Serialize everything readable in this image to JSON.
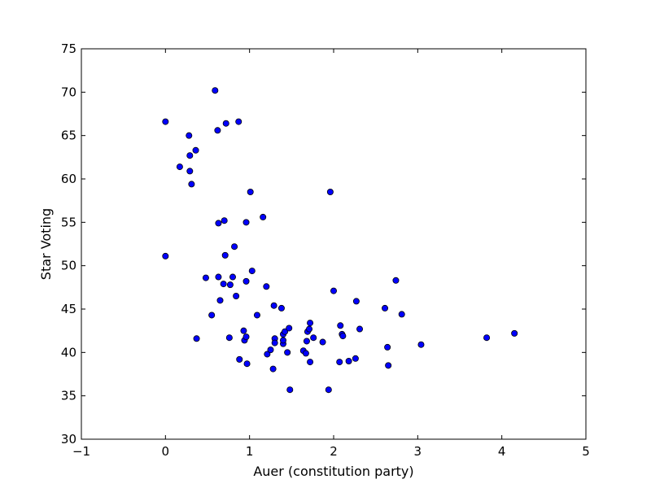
{
  "chart_data": {
    "type": "scatter",
    "title": "",
    "xlabel": "Auer (constitution party)",
    "ylabel": "Star Voting",
    "xlim": [
      -1,
      5
    ],
    "ylim": [
      30,
      75
    ],
    "xticks": [
      -1,
      0,
      1,
      2,
      3,
      4,
      5
    ],
    "xtick_labels": [
      "−1",
      "0",
      "1",
      "2",
      "3",
      "4",
      "5"
    ],
    "yticks": [
      30,
      35,
      40,
      45,
      50,
      55,
      60,
      65,
      70,
      75
    ],
    "ytick_labels": [
      "30",
      "35",
      "40",
      "45",
      "50",
      "55",
      "60",
      "65",
      "70",
      "75"
    ],
    "grid": false,
    "marker_color": "#0000ff",
    "marker_edge_color": "#000000",
    "series": [
      {
        "points": [
          [
            0.0,
            66.6
          ],
          [
            0.0,
            51.1
          ],
          [
            0.17,
            61.4
          ],
          [
            0.28,
            65.0
          ],
          [
            0.29,
            62.7
          ],
          [
            0.29,
            60.9
          ],
          [
            0.31,
            59.4
          ],
          [
            0.36,
            63.3
          ],
          [
            0.37,
            41.6
          ],
          [
            0.48,
            48.6
          ],
          [
            0.55,
            44.3
          ],
          [
            0.59,
            70.2
          ],
          [
            0.62,
            65.6
          ],
          [
            0.63,
            54.9
          ],
          [
            0.63,
            48.7
          ],
          [
            0.65,
            46.0
          ],
          [
            0.69,
            47.9
          ],
          [
            0.7,
            55.2
          ],
          [
            0.71,
            51.2
          ],
          [
            0.72,
            66.4
          ],
          [
            0.76,
            41.7
          ],
          [
            0.77,
            47.8
          ],
          [
            0.8,
            48.7
          ],
          [
            0.82,
            52.2
          ],
          [
            0.84,
            46.5
          ],
          [
            0.87,
            66.6
          ],
          [
            0.88,
            39.2
          ],
          [
            0.93,
            42.5
          ],
          [
            0.94,
            41.4
          ],
          [
            0.96,
            55.0
          ],
          [
            0.96,
            48.2
          ],
          [
            0.96,
            41.8
          ],
          [
            0.97,
            38.7
          ],
          [
            1.01,
            58.5
          ],
          [
            1.03,
            49.4
          ],
          [
            1.09,
            44.3
          ],
          [
            1.16,
            55.6
          ],
          [
            1.2,
            47.6
          ],
          [
            1.21,
            39.8
          ],
          [
            1.25,
            40.3
          ],
          [
            1.28,
            38.1
          ],
          [
            1.29,
            45.4
          ],
          [
            1.3,
            41.6
          ],
          [
            1.3,
            41.1
          ],
          [
            1.38,
            45.1
          ],
          [
            1.4,
            41.0
          ],
          [
            1.4,
            41.4
          ],
          [
            1.4,
            42.1
          ],
          [
            1.42,
            42.4
          ],
          [
            1.45,
            40.0
          ],
          [
            1.47,
            42.8
          ],
          [
            1.48,
            35.7
          ],
          [
            1.64,
            40.2
          ],
          [
            1.67,
            39.9
          ],
          [
            1.68,
            41.3
          ],
          [
            1.69,
            42.4
          ],
          [
            1.71,
            42.7
          ],
          [
            1.72,
            43.4
          ],
          [
            1.72,
            38.9
          ],
          [
            1.76,
            41.7
          ],
          [
            1.87,
            41.2
          ],
          [
            1.94,
            35.7
          ],
          [
            1.96,
            58.5
          ],
          [
            2.0,
            47.1
          ],
          [
            2.07,
            38.9
          ],
          [
            2.08,
            43.1
          ],
          [
            2.1,
            42.1
          ],
          [
            2.11,
            41.9
          ],
          [
            2.18,
            39.0
          ],
          [
            2.26,
            39.3
          ],
          [
            2.27,
            45.9
          ],
          [
            2.31,
            42.7
          ],
          [
            2.61,
            45.1
          ],
          [
            2.64,
            40.6
          ],
          [
            2.65,
            38.5
          ],
          [
            2.74,
            48.3
          ],
          [
            2.81,
            44.4
          ],
          [
            3.04,
            40.9
          ],
          [
            3.82,
            41.7
          ],
          [
            4.15,
            42.2
          ]
        ]
      }
    ]
  }
}
